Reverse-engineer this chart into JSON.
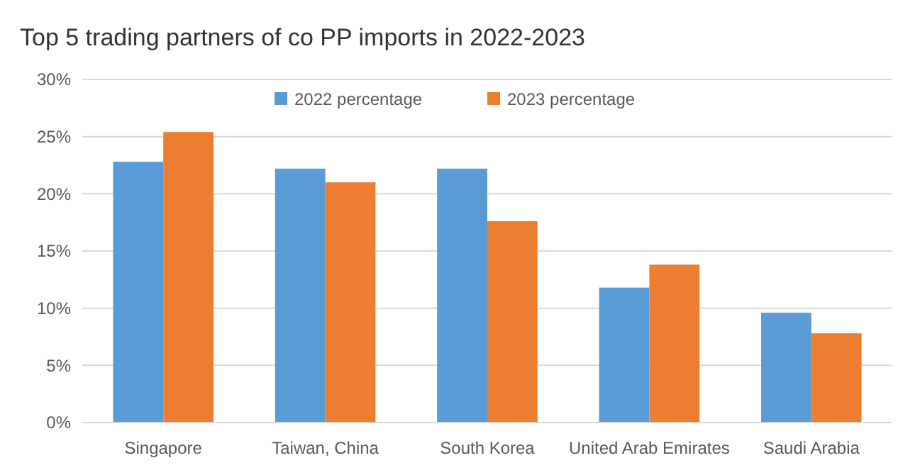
{
  "chart_data": {
    "type": "bar",
    "title": "Top 5 trading partners of co PP imports in 2022-2023",
    "categories": [
      "Singapore",
      "Taiwan, China",
      "South Korea",
      "United Arab Emirates",
      "Saudi Arabia"
    ],
    "series": [
      {
        "name": "2022 percentage",
        "color": "#5b9bd5",
        "values": [
          22.8,
          22.2,
          22.2,
          11.8,
          9.6
        ]
      },
      {
        "name": "2023 percentage",
        "color": "#ed7d31",
        "values": [
          25.4,
          21.0,
          17.6,
          13.8,
          7.8
        ]
      }
    ],
    "ylim": [
      0,
      30
    ],
    "yticks": [
      {
        "value": 0,
        "label": "0%"
      },
      {
        "value": 5,
        "label": "5%"
      },
      {
        "value": 10,
        "label": "10%"
      },
      {
        "value": 15,
        "label": "15%"
      },
      {
        "value": 20,
        "label": "20%"
      },
      {
        "value": 25,
        "label": "25%"
      },
      {
        "value": 30,
        "label": "30%"
      }
    ],
    "grid": "y",
    "legend": "top"
  }
}
